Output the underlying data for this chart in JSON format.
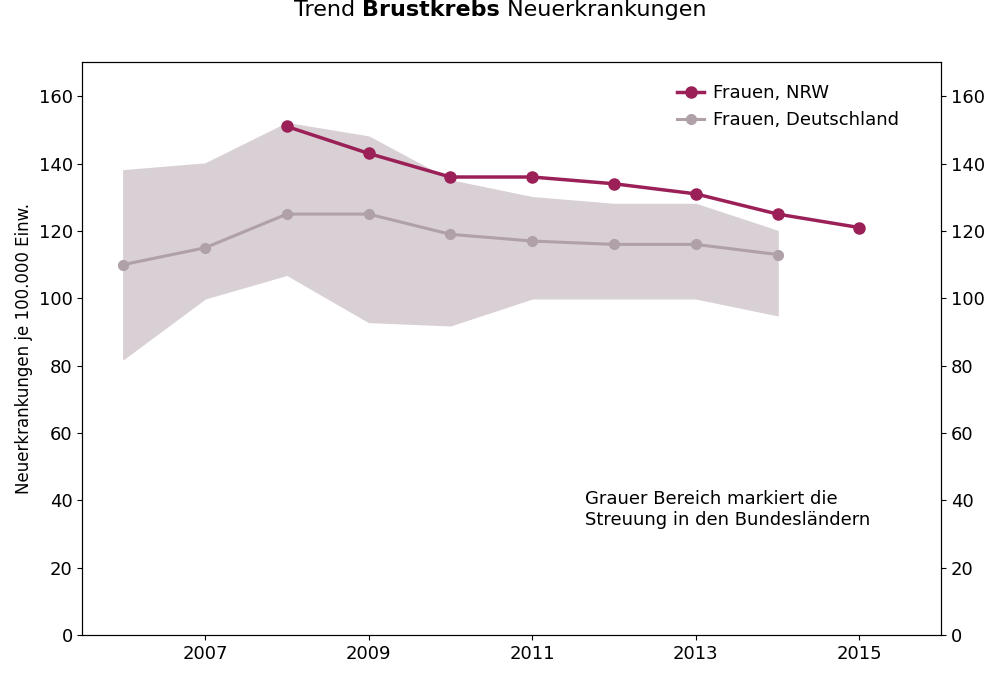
{
  "years": [
    2006,
    2007,
    2008,
    2009,
    2010,
    2011,
    2012,
    2013,
    2014,
    2015
  ],
  "nrw": [
    null,
    null,
    151,
    143,
    136,
    136,
    134,
    131,
    125,
    121
  ],
  "deutschland": [
    110,
    115,
    125,
    125,
    119,
    117,
    116,
    116,
    113,
    null
  ],
  "shade_upper": [
    138,
    140,
    152,
    148,
    135,
    130,
    128,
    128,
    120,
    null
  ],
  "shade_lower": [
    82,
    100,
    107,
    93,
    92,
    100,
    100,
    100,
    95,
    null
  ],
  "nrw_color": "#9B2057",
  "deutschland_color": "#B0A0A8",
  "shade_color": "#D8D0D5",
  "ylabel": "Neuerkrankungen je 100.000 Einw.",
  "legend_nrw": "Frauen, NRW",
  "legend_deutschland": "Frauen, Deutschland",
  "annotation": "Grauer Bereich markiert die\nStreuung in den Bundesländern",
  "ylim": [
    0,
    170
  ],
  "yticks": [
    0,
    20,
    40,
    60,
    80,
    100,
    120,
    140,
    160
  ],
  "xlim": [
    2005.5,
    2016.0
  ],
  "xticks": [
    2007,
    2009,
    2011,
    2013,
    2015
  ],
  "title_fontsize": 16,
  "label_fontsize": 12,
  "tick_fontsize": 13,
  "legend_fontsize": 13,
  "annotation_fontsize": 13,
  "title_part1": "Trend ",
  "title_part2": "Brustkrebs",
  "title_part3": " Neuerkrankungen"
}
